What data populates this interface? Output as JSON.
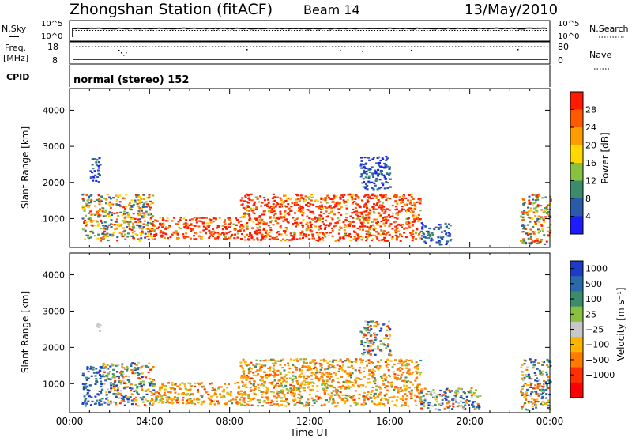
{
  "header": {
    "station": "Zhongshan Station (fitACF)",
    "beam": "Beam 14",
    "date": "13/May/2010"
  },
  "sky_panel": {
    "left_label": "N.Sky",
    "left_ticks": [
      "10^5",
      "10^0"
    ],
    "right_ticks": [
      "10^5",
      "10^0"
    ],
    "right_label": "N.Search"
  },
  "freq_panel": {
    "left_label_1": "Freq.",
    "left_label_2": "[MHz]",
    "left_ticks": [
      "18",
      "8"
    ],
    "right_ticks": [
      "80",
      "0"
    ],
    "right_label": "Nave"
  },
  "cpid_panel": {
    "label": "CPID",
    "mode": "normal (stereo) 152"
  },
  "x_axis": {
    "ticks": [
      "00:00",
      "04:00",
      "08:00",
      "12:00",
      "16:00",
      "20:00",
      "00:00"
    ],
    "title": "Time UT"
  },
  "chart_data": [
    {
      "type": "heatmap",
      "quantity": "Power",
      "ylabel": "Slant Range [km]",
      "yticks": [
        "1000",
        "2000",
        "3000",
        "4000"
      ],
      "xlim_hours": [
        0,
        24
      ],
      "ylim_km": [
        200,
        4600
      ],
      "colorbar_label": "Power [dB]",
      "colorbar_ticks": [
        "4",
        "8",
        "12",
        "16",
        "20",
        "24",
        "28"
      ],
      "colors": [
        "#1c1cff",
        "#2a5aa8",
        "#3a8c6a",
        "#8ac040",
        "#ffd800",
        "#ff9c00",
        "#ff5a00",
        "#ff1a00"
      ],
      "scatter_regions": [
        {
          "t0": 0.6,
          "t1": 4.2,
          "r0": 400,
          "r1": 1700,
          "level": "mixed-high"
        },
        {
          "t0": 1.0,
          "t1": 1.5,
          "r0": 2000,
          "r1": 2700,
          "level": "low"
        },
        {
          "t0": 4.0,
          "t1": 8.5,
          "r0": 450,
          "r1": 1050,
          "level": "high"
        },
        {
          "t0": 8.5,
          "t1": 17.5,
          "r0": 400,
          "r1": 1700,
          "level": "high"
        },
        {
          "t0": 14.5,
          "t1": 16.0,
          "r0": 1800,
          "r1": 2750,
          "level": "low"
        },
        {
          "t0": 17.5,
          "t1": 19.0,
          "r0": 300,
          "r1": 900,
          "level": "low"
        },
        {
          "t0": 22.5,
          "t1": 24.0,
          "r0": 300,
          "r1": 1700,
          "level": "mixed-high"
        }
      ]
    },
    {
      "type": "heatmap",
      "quantity": "Velocity",
      "ylabel": "Slant Range [km]",
      "yticks": [
        "1000",
        "2000",
        "3000",
        "4000"
      ],
      "xlim_hours": [
        0,
        24
      ],
      "ylim_km": [
        200,
        4600
      ],
      "colorbar_label": "Velocity [m s⁻¹]",
      "colorbar_ticks": [
        "1000",
        "500",
        "100",
        "25",
        "−25",
        "−100",
        "−500",
        "−1000"
      ],
      "colors": [
        "#1c3cc8",
        "#2a6aa8",
        "#3a8c6a",
        "#8ac040",
        "#c8c8c8",
        "#ffb400",
        "#ff7a00",
        "#ff3000",
        "#ff0000"
      ],
      "scatter_regions": [
        {
          "t0": 0.6,
          "t1": 1.6,
          "r0": 400,
          "r1": 1500,
          "level": "positive"
        },
        {
          "t0": 1.6,
          "t1": 4.2,
          "r0": 400,
          "r1": 1600,
          "level": "mixed"
        },
        {
          "t0": 1.2,
          "t1": 1.5,
          "r0": 2400,
          "r1": 2700,
          "level": "grey"
        },
        {
          "t0": 4.0,
          "t1": 8.5,
          "r0": 450,
          "r1": 1050,
          "level": "negative"
        },
        {
          "t0": 8.5,
          "t1": 17.5,
          "r0": 400,
          "r1": 1700,
          "level": "negative"
        },
        {
          "t0": 14.5,
          "t1": 16.0,
          "r0": 1800,
          "r1": 2750,
          "level": "mixed"
        },
        {
          "t0": 17.5,
          "t1": 20.5,
          "r0": 300,
          "r1": 900,
          "level": "mixed"
        },
        {
          "t0": 22.5,
          "t1": 24.0,
          "r0": 300,
          "r1": 1700,
          "level": "mixed"
        }
      ]
    }
  ]
}
